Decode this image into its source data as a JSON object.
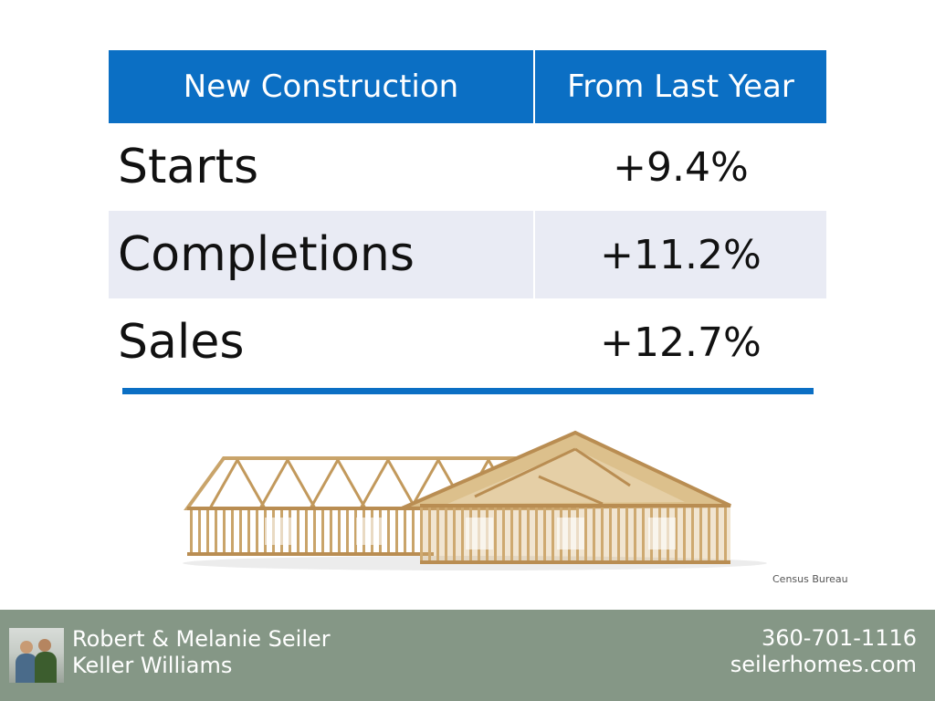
{
  "table": {
    "headers": [
      "New Construction",
      "From Last Year"
    ],
    "rows": [
      {
        "label": "Starts",
        "value": "+9.4%"
      },
      {
        "label": "Completions",
        "value": "+11.2%"
      },
      {
        "label": "Sales",
        "value": "+12.7%"
      }
    ]
  },
  "colors": {
    "header_blue": "#0b6fc4",
    "footer_green": "#859786",
    "row_alt": "#e9ebf4"
  },
  "source": "Census Bureau",
  "footer": {
    "name": "Robert & Melanie Seiler",
    "company": "Keller Williams",
    "phone": "360-701-1116",
    "website": "seilerhomes.com",
    "photo_icon": "agent-photo"
  }
}
